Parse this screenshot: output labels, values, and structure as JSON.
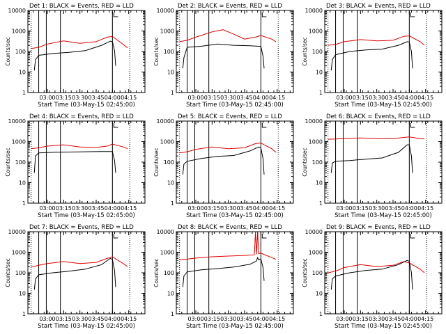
{
  "figure": {
    "colors": {
      "black_series": "#000000",
      "red_series": "#dd0000",
      "axes": "#000000",
      "background": "#ffffff"
    }
  },
  "chart_data": [
    {
      "type": "line",
      "title": "Det 1: BLACK = Events, RED = LLD",
      "xlabel": "Start Time (03-May-15 02:45:00)",
      "ylabel": "Counts/sec",
      "yscale": "log",
      "ylim": [
        1,
        10000
      ],
      "x_ticks": [
        "03:00",
        "03:15",
        "03:30",
        "03:45",
        "04:00",
        "04:15"
      ],
      "y_ticks": [
        "1",
        "10",
        "100",
        "1000",
        "10000"
      ],
      "solid_markers": [
        "02:52",
        "02:59",
        "03:12",
        "04:00"
      ],
      "dotted_markers": [
        "02:45",
        "04:16"
      ],
      "series": [
        {
          "color": "black",
          "x": [
            "02:48",
            "02:49",
            "02:52",
            "03:05",
            "03:20",
            "03:35",
            "03:50",
            "03:58",
            "04:00",
            "04:02",
            "04:03"
          ],
          "y": [
            12,
            40,
            65,
            80,
            90,
            110,
            200,
            320,
            300,
            110,
            20
          ]
        },
        {
          "color": "red",
          "x": [
            "02:45",
            "02:52",
            "03:00",
            "03:15",
            "03:30",
            "03:45",
            "03:55",
            "04:00",
            "04:10",
            "04:14"
          ],
          "y": [
            140,
            160,
            230,
            330,
            250,
            300,
            500,
            540,
            220,
            150
          ]
        }
      ]
    },
    {
      "type": "line",
      "title": "Det 2: BLACK = Events, RED = LLD",
      "xlabel": "Start Time (03-May-15 02:45:00)",
      "ylabel": "Counts/sec",
      "yscale": "log",
      "ylim": [
        1,
        10000
      ],
      "x_ticks": [
        "03:00",
        "03:15",
        "03:30",
        "03:45",
        "04:00",
        "04:15"
      ],
      "y_ticks": [
        "1",
        "10",
        "100",
        "1000",
        "10000"
      ],
      "solid_markers": [
        "02:52",
        "02:59",
        "03:12",
        "04:00"
      ],
      "dotted_markers": [
        "02:45",
        "04:16"
      ],
      "series": [
        {
          "color": "black",
          "x": [
            "02:48",
            "02:49",
            "02:52",
            "03:05",
            "03:20",
            "03:35",
            "03:50",
            "03:58",
            "04:00",
            "04:02",
            "04:03"
          ],
          "y": [
            15,
            50,
            160,
            180,
            230,
            200,
            190,
            180,
            180,
            60,
            15
          ]
        },
        {
          "color": "red",
          "x": [
            "02:45",
            "02:52",
            "03:00",
            "03:15",
            "03:25",
            "03:35",
            "03:45",
            "03:55",
            "04:00",
            "04:10",
            "04:14"
          ],
          "y": [
            300,
            350,
            500,
            900,
            1150,
            700,
            400,
            500,
            600,
            400,
            300
          ]
        }
      ]
    },
    {
      "type": "line",
      "title": "Det 3: BLACK = Events, RED = LLD",
      "xlabel": "Start Time (03-May-15 02:45:00)",
      "ylabel": "Counts/sec",
      "yscale": "log",
      "ylim": [
        1,
        10000
      ],
      "x_ticks": [
        "03:00",
        "03:15",
        "03:30",
        "03:45",
        "04:00",
        "04:15"
      ],
      "y_ticks": [
        "1",
        "10",
        "100",
        "1000",
        "10000"
      ],
      "solid_markers": [
        "02:52",
        "02:59",
        "03:12",
        "04:00"
      ],
      "dotted_markers": [
        "02:45",
        "04:16"
      ],
      "series": [
        {
          "color": "black",
          "x": [
            "02:48",
            "02:49",
            "02:52",
            "03:05",
            "03:20",
            "03:35",
            "03:50",
            "03:58",
            "04:00",
            "04:02",
            "04:03"
          ],
          "y": [
            12,
            40,
            70,
            100,
            120,
            130,
            200,
            300,
            290,
            100,
            15
          ]
        },
        {
          "color": "red",
          "x": [
            "02:45",
            "02:52",
            "03:00",
            "03:15",
            "03:30",
            "03:45",
            "03:55",
            "04:00",
            "04:10",
            "04:14"
          ],
          "y": [
            200,
            220,
            300,
            380,
            330,
            350,
            550,
            580,
            300,
            200
          ]
        }
      ]
    },
    {
      "type": "line",
      "title": "Det 4: BLACK = Events, RED = LLD",
      "xlabel": "Start Time (03-May-15 02:45:00)",
      "ylabel": "Counts/sec",
      "yscale": "log",
      "ylim": [
        1,
        10000
      ],
      "x_ticks": [
        "03:00",
        "03:15",
        "03:30",
        "03:45",
        "04:00",
        "04:15"
      ],
      "y_ticks": [
        "1",
        "10",
        "100",
        "1000",
        "10000"
      ],
      "solid_markers": [
        "02:52",
        "02:59",
        "03:12",
        "04:00"
      ],
      "dotted_markers": [
        "02:45",
        "04:16"
      ],
      "series": [
        {
          "color": "black",
          "x": [
            "02:48",
            "02:49",
            "02:52",
            "03:05",
            "03:20",
            "03:35",
            "03:50",
            "03:58",
            "04:00",
            "04:02",
            "04:03"
          ],
          "y": [
            30,
            200,
            280,
            300,
            310,
            320,
            330,
            330,
            330,
            120,
            30
          ]
        },
        {
          "color": "red",
          "x": [
            "02:45",
            "02:52",
            "03:00",
            "03:15",
            "03:30",
            "03:45",
            "03:55",
            "04:00",
            "04:10",
            "04:14"
          ],
          "y": [
            450,
            500,
            600,
            700,
            550,
            520,
            600,
            750,
            550,
            450
          ]
        }
      ]
    },
    {
      "type": "line",
      "title": "Det 5: BLACK = Events, RED = LLD",
      "xlabel": "Start Time (03-May-15 02:45:00)",
      "ylabel": "Counts/sec",
      "yscale": "log",
      "ylim": [
        1,
        10000
      ],
      "x_ticks": [
        "03:00",
        "03:15",
        "03:30",
        "03:45",
        "04:00",
        "04:15"
      ],
      "y_ticks": [
        "1",
        "10",
        "100",
        "1000",
        "10000"
      ],
      "solid_markers": [
        "02:52",
        "02:59",
        "03:12",
        "04:00"
      ],
      "dotted_markers": [
        "02:45",
        "04:16"
      ],
      "series": [
        {
          "color": "black",
          "x": [
            "02:48",
            "02:49",
            "02:52",
            "03:05",
            "03:20",
            "03:35",
            "03:50",
            "03:58",
            "04:00",
            "04:02",
            "04:03"
          ],
          "y": [
            25,
            80,
            110,
            150,
            190,
            210,
            350,
            550,
            500,
            150,
            25
          ]
        },
        {
          "color": "red",
          "x": [
            "02:45",
            "02:52",
            "03:00",
            "03:15",
            "03:30",
            "03:45",
            "03:55",
            "04:00",
            "04:10",
            "04:14"
          ],
          "y": [
            280,
            320,
            420,
            550,
            450,
            500,
            800,
            850,
            450,
            300
          ]
        }
      ]
    },
    {
      "type": "line",
      "title": "Det 6: BLACK = Events, RED = LLD",
      "xlabel": "Start Time (03-May-15 02:45:00)",
      "ylabel": "Counts/sec",
      "yscale": "log",
      "ylim": [
        1,
        10000
      ],
      "x_ticks": [
        "03:00",
        "03:15",
        "03:30",
        "03:45",
        "04:00",
        "04:15"
      ],
      "y_ticks": [
        "1",
        "10",
        "100",
        "1000",
        "10000"
      ],
      "solid_markers": [
        "02:52",
        "02:59",
        "03:12",
        "04:00"
      ],
      "dotted_markers": [
        "02:45",
        "04:16"
      ],
      "series": [
        {
          "color": "black",
          "x": [
            "02:48",
            "02:49",
            "02:52",
            "03:05",
            "03:20",
            "03:35",
            "03:50",
            "03:58",
            "04:00",
            "04:02",
            "04:03"
          ],
          "y": [
            30,
            90,
            110,
            120,
            140,
            160,
            300,
            700,
            700,
            200,
            30
          ]
        },
        {
          "color": "red",
          "x": [
            "02:45",
            "02:52",
            "03:00",
            "03:15",
            "03:30",
            "03:45",
            "03:55",
            "04:00",
            "04:10",
            "04:14"
          ],
          "y": [
            1300,
            1350,
            1400,
            1500,
            1400,
            1400,
            1600,
            1700,
            1400,
            1350
          ]
        }
      ]
    },
    {
      "type": "line",
      "title": "Det 7: BLACK = Events, RED = LLD",
      "xlabel": "Start Time (03-May-15 02:45:00)",
      "ylabel": "Counts/sec",
      "yscale": "log",
      "ylim": [
        1,
        10000
      ],
      "x_ticks": [
        "03:00",
        "03:15",
        "03:30",
        "03:45",
        "04:00",
        "04:15"
      ],
      "y_ticks": [
        "1",
        "10",
        "100",
        "1000",
        "10000"
      ],
      "solid_markers": [
        "02:52",
        "02:59",
        "03:12",
        "04:00"
      ],
      "dotted_markers": [
        "02:45",
        "04:16"
      ],
      "series": [
        {
          "color": "black",
          "x": [
            "02:48",
            "02:49",
            "02:52",
            "03:05",
            "03:20",
            "03:35",
            "03:50",
            "03:58",
            "04:00",
            "04:02",
            "04:03"
          ],
          "y": [
            15,
            50,
            80,
            100,
            120,
            150,
            250,
            500,
            450,
            130,
            20
          ]
        },
        {
          "color": "red",
          "x": [
            "02:45",
            "02:52",
            "03:00",
            "03:15",
            "03:30",
            "03:45",
            "03:55",
            "04:00",
            "04:10",
            "04:14"
          ],
          "y": [
            190,
            230,
            280,
            350,
            280,
            320,
            500,
            600,
            280,
            200
          ]
        }
      ]
    },
    {
      "type": "line",
      "title": "Det 8: BLACK = Events, RED = LLD",
      "xlabel": "Start Time (03-May-15 02:45:00)",
      "ylabel": "Counts/sec",
      "yscale": "log",
      "ylim": [
        1,
        10000
      ],
      "x_ticks": [
        "03:00",
        "03:15",
        "03:30",
        "03:45",
        "04:00",
        "04:15"
      ],
      "y_ticks": [
        "1",
        "10",
        "100",
        "1000",
        "10000"
      ],
      "solid_markers": [
        "02:52",
        "02:59",
        "03:12",
        "04:00"
      ],
      "dotted_markers": [
        "02:45",
        "04:16"
      ],
      "series": [
        {
          "color": "black",
          "x": [
            "02:48",
            "02:49",
            "02:52",
            "03:05",
            "03:20",
            "03:35",
            "03:50",
            "03:56",
            "03:57",
            "03:58",
            "04:00",
            "04:02",
            "04:03"
          ],
          "y": [
            20,
            70,
            110,
            140,
            160,
            190,
            260,
            380,
            550,
            420,
            480,
            180,
            40
          ]
        },
        {
          "color": "red",
          "x": [
            "02:45",
            "02:52",
            "03:00",
            "03:15",
            "03:30",
            "03:45",
            "03:54",
            "03:55",
            "03:56",
            "03:57",
            "03:58",
            "04:00",
            "04:10",
            "04:14"
          ],
          "y": [
            420,
            460,
            520,
            600,
            650,
            700,
            750,
            10000,
            800,
            10000,
            850,
            900,
            550,
            450
          ]
        }
      ]
    },
    {
      "type": "line",
      "title": "Det 9: BLACK = Events, RED = LLD",
      "xlabel": "Start Time (03-May-15 02:45:00)",
      "ylabel": "Counts/sec",
      "yscale": "log",
      "ylim": [
        1,
        10000
      ],
      "x_ticks": [
        "03:00",
        "03:15",
        "03:30",
        "03:45",
        "04:00",
        "04:15"
      ],
      "y_ticks": [
        "1",
        "10",
        "100",
        "1000",
        "10000"
      ],
      "solid_markers": [
        "02:52",
        "02:59",
        "03:12",
        "04:00"
      ],
      "dotted_markers": [
        "02:45",
        "04:16"
      ],
      "series": [
        {
          "color": "black",
          "x": [
            "02:48",
            "02:49",
            "02:52",
            "03:05",
            "03:20",
            "03:35",
            "03:50",
            "03:58",
            "04:00",
            "04:02",
            "04:03"
          ],
          "y": [
            15,
            50,
            70,
            100,
            130,
            150,
            250,
            400,
            360,
            100,
            15
          ]
        },
        {
          "color": "red",
          "x": [
            "02:45",
            "02:52",
            "03:00",
            "03:15",
            "03:30",
            "03:45",
            "03:55",
            "04:00",
            "04:10",
            "04:14"
          ],
          "y": [
            100,
            120,
            180,
            250,
            200,
            230,
            350,
            300,
            150,
            100
          ]
        }
      ]
    }
  ]
}
